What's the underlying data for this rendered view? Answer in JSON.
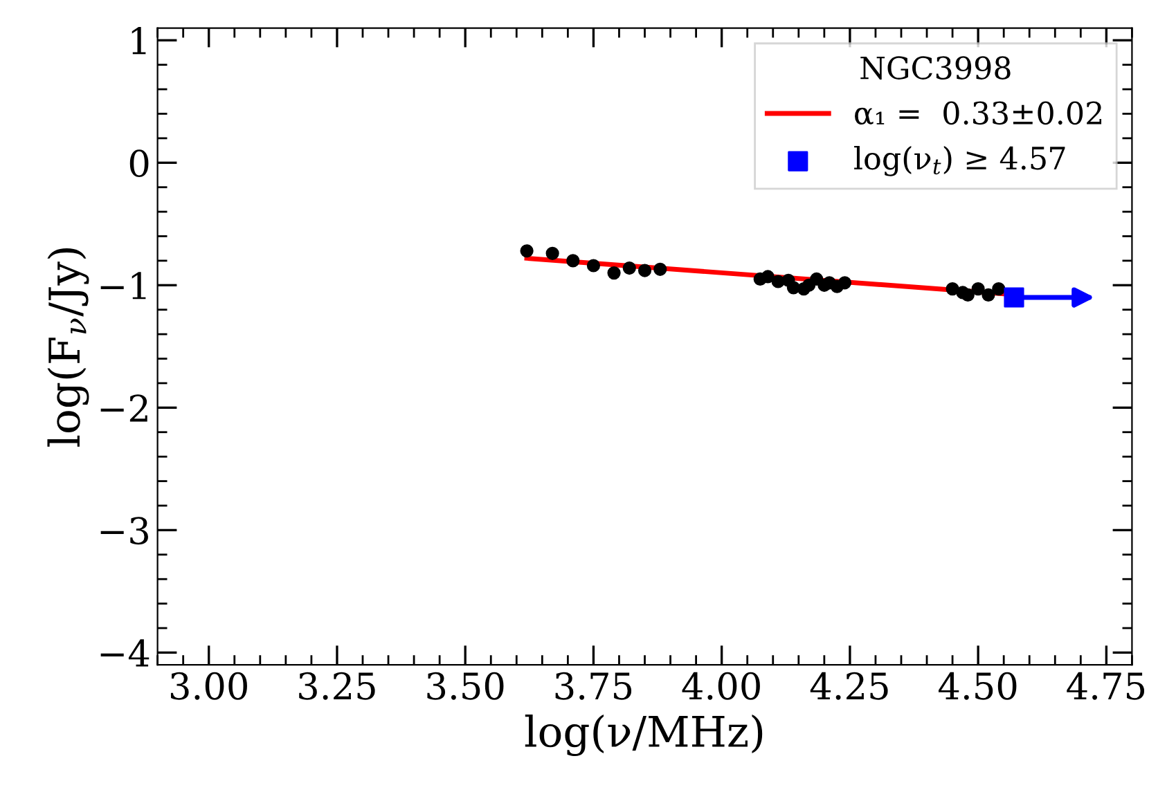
{
  "chart_data": {
    "type": "scatter",
    "xlabel": "log(ν/MHz)",
    "ylabel": "log(F$_{ν}$/Jy)",
    "legend_title": "NGC3998",
    "xlim": [
      2.9,
      4.8
    ],
    "ylim": [
      -4.1,
      1.1
    ],
    "xticks": [
      {
        "value": 3.0,
        "label": "3.00"
      },
      {
        "value": 3.25,
        "label": "3.25"
      },
      {
        "value": 3.5,
        "label": "3.50"
      },
      {
        "value": 3.75,
        "label": "3.75"
      },
      {
        "value": 4.0,
        "label": "4.00"
      },
      {
        "value": 4.25,
        "label": "4.25"
      },
      {
        "value": 4.5,
        "label": "4.50"
      },
      {
        "value": 4.75,
        "label": "4.75"
      }
    ],
    "yticks": [
      -4,
      -3,
      -2,
      -1,
      0,
      1
    ],
    "grid": false,
    "legend": "top right",
    "series": [
      {
        "color": "#000000",
        "marker": "circle",
        "x": [
          3.62,
          3.67,
          3.71,
          3.75,
          3.79,
          3.82,
          3.85,
          3.88,
          4.075,
          4.09,
          4.11,
          4.13,
          4.14,
          4.16,
          4.17,
          4.185,
          4.2,
          4.21,
          4.225,
          4.24,
          4.45,
          4.47,
          4.48,
          4.5,
          4.52,
          4.54
        ],
        "values": [
          -0.72,
          -0.74,
          -0.8,
          -0.84,
          -0.9,
          -0.86,
          -0.88,
          -0.87,
          -0.95,
          -0.93,
          -0.97,
          -0.96,
          -1.02,
          -1.03,
          -1.0,
          -0.95,
          -1.0,
          -0.98,
          -1.01,
          -0.98,
          -1.03,
          -1.06,
          -1.08,
          -1.03,
          -1.08,
          -1.03
        ]
      },
      {
        "type": "line",
        "name": "α₁ =  0.33±0.02",
        "color": "#ff0000",
        "marker": "none",
        "line_style": "solid",
        "x": [
          3.62,
          4.55
        ],
        "values": [
          -0.78,
          -1.07
        ]
      },
      {
        "name": "log(ν$_{t}$) ≥ 4.57",
        "color": "#0000ff",
        "marker": "square",
        "x": [
          4.57
        ],
        "values": [
          -1.1
        ]
      }
    ]
  }
}
